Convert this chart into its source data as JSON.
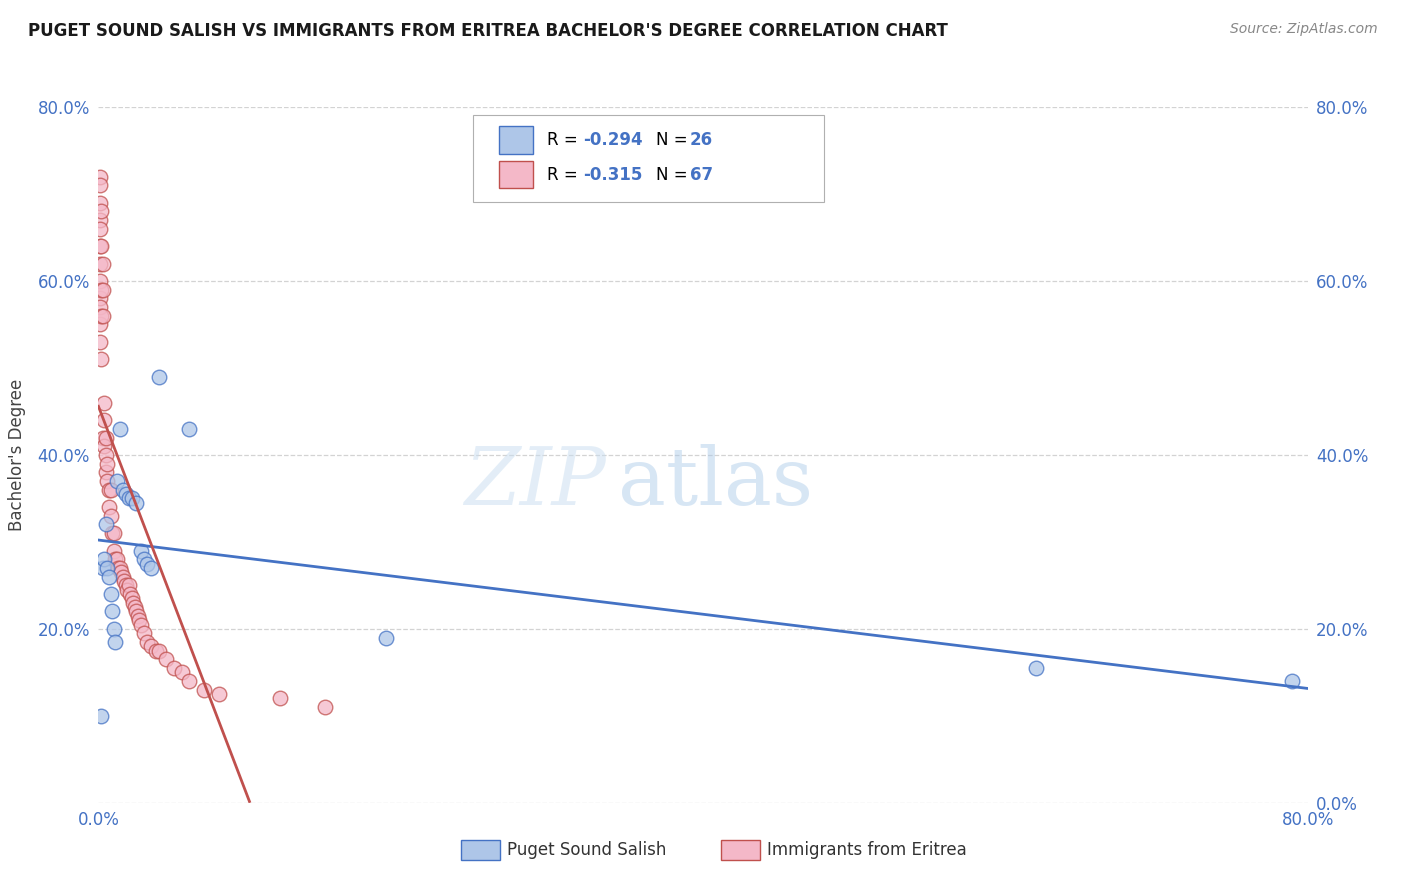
{
  "title": "PUGET SOUND SALISH VS IMMIGRANTS FROM ERITREA BACHELOR'S DEGREE CORRELATION CHART",
  "source": "Source: ZipAtlas.com",
  "ylabel": "Bachelor's Degree",
  "xlim": [
    0.0,
    0.8
  ],
  "ylim": [
    0.0,
    0.8
  ],
  "xticks": [
    0.0,
    0.2,
    0.4,
    0.6,
    0.8
  ],
  "yticks": [
    0.0,
    0.2,
    0.4,
    0.6,
    0.8
  ],
  "xticklabels": [
    "0.0%",
    "",
    "",
    "",
    "80.0%"
  ],
  "yticklabels": [
    "",
    "20.0%",
    "40.0%",
    "60.0%",
    "80.0%"
  ],
  "right_yticklabels": [
    "0.0%",
    "20.0%",
    "40.0%",
    "60.0%",
    "80.0%"
  ],
  "blue_R": -0.294,
  "blue_N": 26,
  "pink_R": -0.315,
  "pink_N": 67,
  "blue_color": "#aec6e8",
  "pink_color": "#f4b8c8",
  "blue_line_color": "#4472c4",
  "pink_line_color": "#c0504d",
  "watermark_zip": "ZIP",
  "watermark_atlas": "atlas",
  "legend_label_blue": "Puget Sound Salish",
  "legend_label_pink": "Immigrants from Eritrea",
  "blue_x": [
    0.002,
    0.003,
    0.004,
    0.005,
    0.006,
    0.007,
    0.008,
    0.009,
    0.01,
    0.011,
    0.012,
    0.014,
    0.016,
    0.018,
    0.02,
    0.022,
    0.025,
    0.028,
    0.03,
    0.032,
    0.035,
    0.04,
    0.06,
    0.19,
    0.62,
    0.79
  ],
  "blue_y": [
    0.1,
    0.27,
    0.28,
    0.32,
    0.27,
    0.26,
    0.24,
    0.22,
    0.2,
    0.185,
    0.37,
    0.43,
    0.36,
    0.355,
    0.35,
    0.35,
    0.345,
    0.29,
    0.28,
    0.275,
    0.27,
    0.49,
    0.43,
    0.19,
    0.155,
    0.14
  ],
  "pink_x": [
    0.001,
    0.001,
    0.001,
    0.001,
    0.001,
    0.001,
    0.001,
    0.001,
    0.001,
    0.001,
    0.001,
    0.001,
    0.002,
    0.002,
    0.002,
    0.002,
    0.002,
    0.003,
    0.003,
    0.003,
    0.003,
    0.004,
    0.004,
    0.004,
    0.005,
    0.005,
    0.005,
    0.006,
    0.006,
    0.007,
    0.007,
    0.008,
    0.008,
    0.009,
    0.01,
    0.01,
    0.011,
    0.012,
    0.013,
    0.014,
    0.015,
    0.016,
    0.017,
    0.018,
    0.019,
    0.02,
    0.021,
    0.022,
    0.023,
    0.024,
    0.025,
    0.026,
    0.027,
    0.028,
    0.03,
    0.032,
    0.035,
    0.038,
    0.04,
    0.045,
    0.05,
    0.055,
    0.06,
    0.07,
    0.08,
    0.12,
    0.15
  ],
  "pink_y": [
    0.72,
    0.71,
    0.69,
    0.67,
    0.66,
    0.64,
    0.62,
    0.6,
    0.58,
    0.57,
    0.55,
    0.53,
    0.68,
    0.64,
    0.59,
    0.56,
    0.51,
    0.62,
    0.59,
    0.56,
    0.42,
    0.46,
    0.44,
    0.41,
    0.42,
    0.4,
    0.38,
    0.39,
    0.37,
    0.36,
    0.34,
    0.36,
    0.33,
    0.31,
    0.31,
    0.29,
    0.28,
    0.28,
    0.27,
    0.27,
    0.265,
    0.26,
    0.255,
    0.25,
    0.245,
    0.25,
    0.24,
    0.235,
    0.23,
    0.225,
    0.22,
    0.215,
    0.21,
    0.205,
    0.195,
    0.185,
    0.18,
    0.175,
    0.175,
    0.165,
    0.155,
    0.15,
    0.14,
    0.13,
    0.125,
    0.12,
    0.11
  ]
}
